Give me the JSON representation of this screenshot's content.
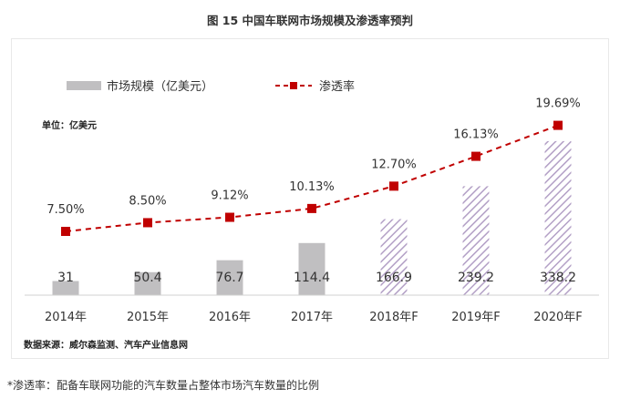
{
  "title": "图 15 中国车联网市场规模及渗透率预判",
  "unit_label": "单位：亿美元",
  "source": "数据来源：威尔森监测、汽车产业信息网",
  "footnote": "*渗透率：配备车联网功能的汽车数量占整体市场汽车数量的比例",
  "chart_data": {
    "type": "bar",
    "title": "图 15 中国车联网市场规模及渗透率预判",
    "categories": [
      "2014年",
      "2015年",
      "2016年",
      "2017年",
      "2018年F",
      "2019年F",
      "2020年F"
    ],
    "forecast_from_index": 4,
    "series": [
      {
        "name": "市场规模（亿美元）",
        "type": "bar",
        "color": "#c0bfc1",
        "forecast_pattern": "hatched-purple",
        "values": [
          31,
          50.4,
          76.7,
          114.4,
          166.9,
          239.2,
          338.2
        ],
        "labels": [
          "31",
          "50.4",
          "76.7",
          "114.4",
          "166.9",
          "239.2",
          "338.2"
        ]
      },
      {
        "name": "渗透率",
        "type": "line",
        "color": "#c00000",
        "line_style": "dashed",
        "marker": "square",
        "values": [
          7.5,
          8.5,
          9.12,
          10.13,
          12.7,
          16.13,
          19.69
        ],
        "labels": [
          "7.50%",
          "8.50%",
          "9.12%",
          "10.13%",
          "12.70%",
          "16.13%",
          "19.69%"
        ]
      }
    ],
    "legend": "top-left",
    "grid": false
  }
}
